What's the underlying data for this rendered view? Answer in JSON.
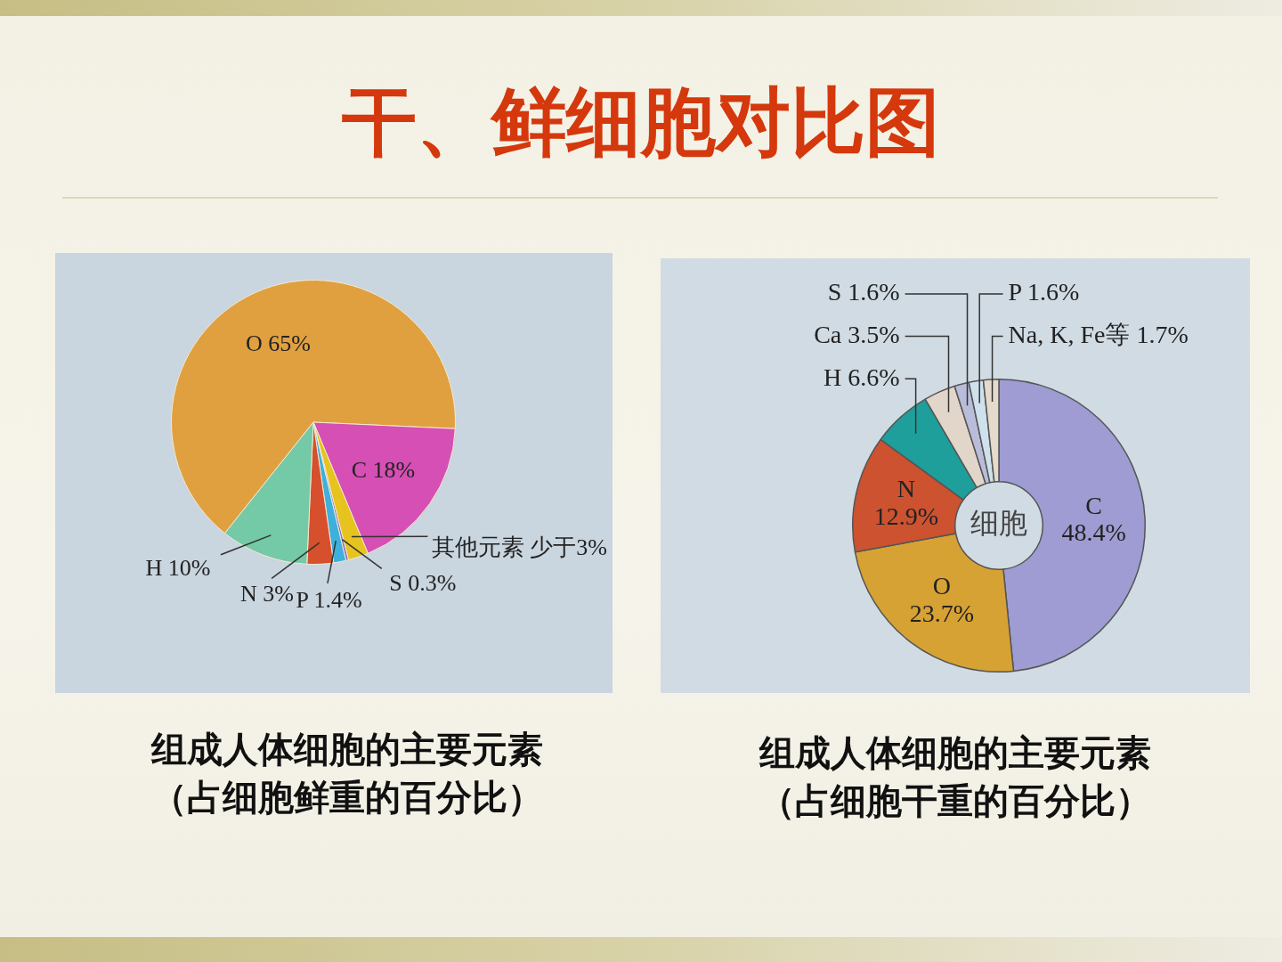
{
  "chart_data": [
    {
      "type": "pie",
      "title": "干、鲜细胞对比图",
      "categories": [
        "O",
        "C",
        "其他元素",
        "S",
        "P",
        "N",
        "H"
      ],
      "values": [
        65,
        18,
        2.3,
        0.3,
        1.4,
        3,
        10
      ],
      "value_labels": [
        "65%",
        "18%",
        "少于3%",
        "0.3%",
        "1.4%",
        "3%",
        "10%"
      ],
      "colors": [
        "#e0a040",
        "#d64fb4",
        "#e6c31e",
        "#8a72c8",
        "#3eb0dc",
        "#d6502e",
        "#74c9a6"
      ],
      "annotations": [
        "组成人体细胞的主要元素",
        "（占细胞鲜重的百分比）"
      ]
    },
    {
      "type": "donut",
      "categories": [
        "C",
        "O",
        "N",
        "H",
        "Ca",
        "S",
        "P",
        "Na, K, Fe等"
      ],
      "values": [
        48.4,
        23.7,
        12.9,
        6.6,
        3.5,
        1.6,
        1.6,
        1.7
      ],
      "value_labels": [
        "48.4%",
        "23.7%",
        "12.9%",
        "6.6%",
        "3.5%",
        "1.6%",
        "1.6%",
        "1.7%"
      ],
      "colors": [
        "#9e9cd2",
        "#d7a234",
        "#cc5230",
        "#1f9f9c",
        "#e2d6ca",
        "#b9bdda",
        "#cfe1ec",
        "#e6dacd"
      ],
      "annotations": [
        "细胞",
        "组成人体细胞的主要元素",
        "（占细胞干重的百分比）"
      ]
    }
  ]
}
